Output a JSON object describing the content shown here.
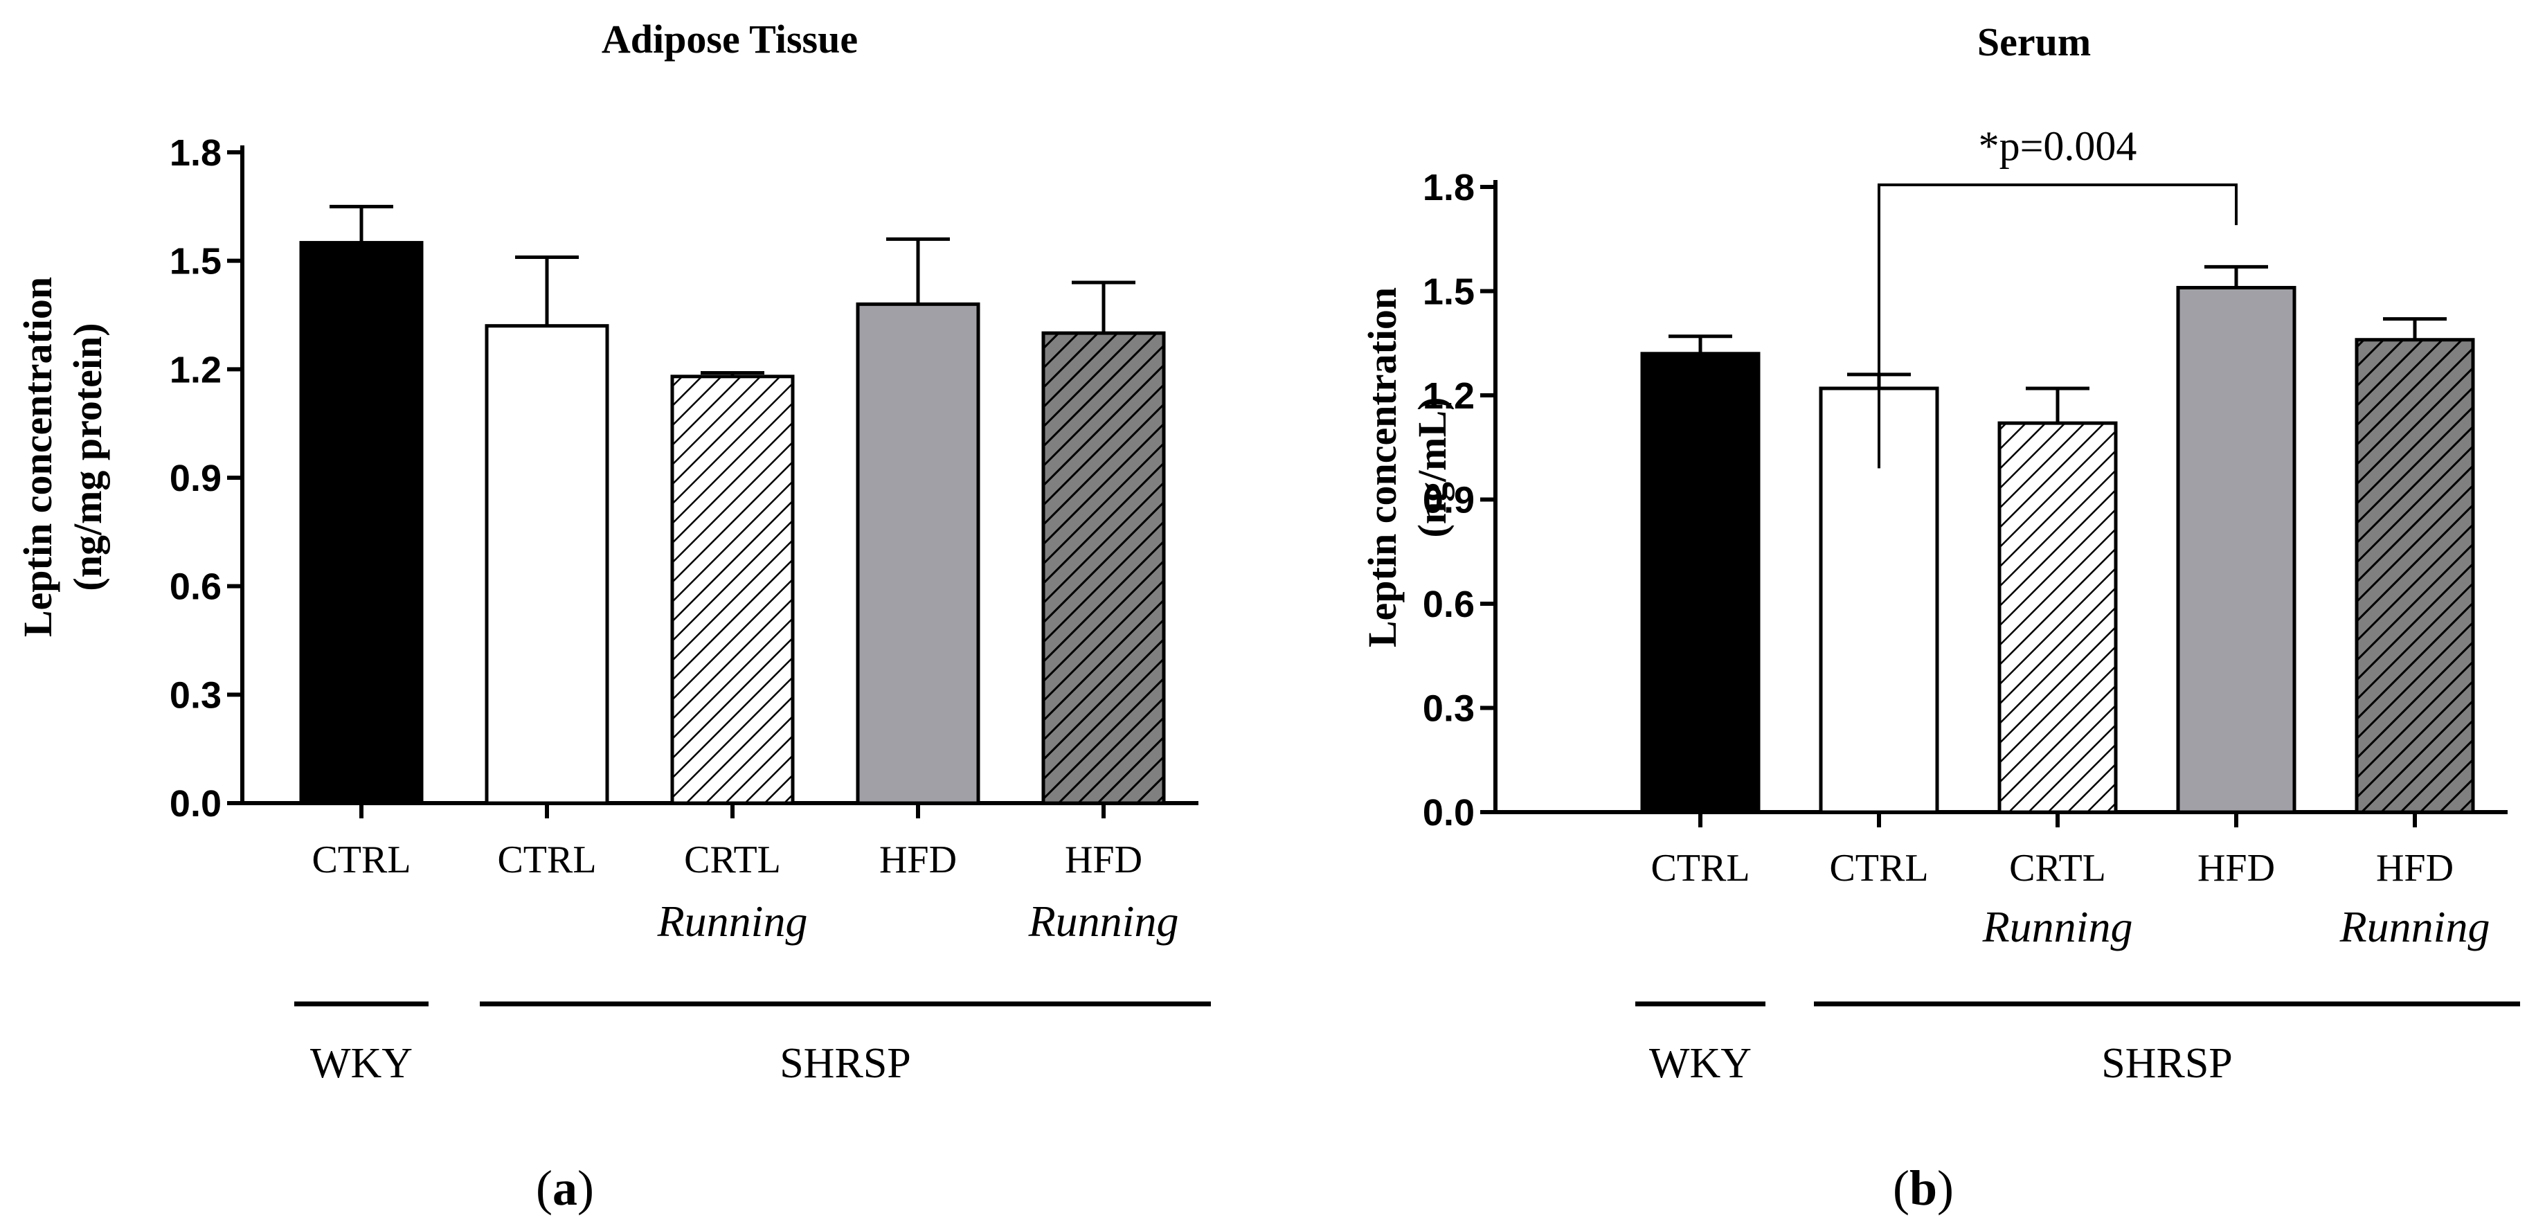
{
  "chart_data": [
    {
      "type": "bar",
      "panel": "a",
      "title": "Adipose Tissue",
      "ylabel_lines": [
        "Leptin concentration",
        "(ng/mg protein)"
      ],
      "ylim": [
        0,
        1.8
      ],
      "yticks": [
        "0.0",
        "0.3",
        "0.6",
        "0.9",
        "1.2",
        "1.5",
        "1.8"
      ],
      "categories": [
        {
          "line1": "CTRL",
          "line2": ""
        },
        {
          "line1": "CTRL",
          "line2": ""
        },
        {
          "line1": "CRTL",
          "line2": "Running"
        },
        {
          "line1": "HFD",
          "line2": ""
        },
        {
          "line1": "HFD",
          "line2": "Running"
        }
      ],
      "values": [
        1.55,
        1.32,
        1.18,
        1.38,
        1.3
      ],
      "errors": [
        0.1,
        0.19,
        0.01,
        0.18,
        0.14
      ],
      "fills": [
        "black",
        "white",
        "hatch-light",
        "gray",
        "hatch-dark"
      ],
      "groups": [
        {
          "label": "WKY",
          "from": 0,
          "to": 0
        },
        {
          "label": "SHRSP",
          "from": 1,
          "to": 4
        }
      ],
      "annotations": []
    },
    {
      "type": "bar",
      "panel": "b",
      "title": "Serum",
      "ylabel_lines": [
        "Leptin concentration",
        "(ng/mL)"
      ],
      "ylim": [
        0,
        1.8
      ],
      "yticks": [
        "0.0",
        "0.3",
        "0.6",
        "0.9",
        "1.2",
        "1.5",
        "1.8"
      ],
      "categories": [
        {
          "line1": "CTRL",
          "line2": ""
        },
        {
          "line1": "CTRL",
          "line2": ""
        },
        {
          "line1": "CRTL",
          "line2": "Running"
        },
        {
          "line1": "HFD",
          "line2": ""
        },
        {
          "line1": "HFD",
          "line2": "Running"
        }
      ],
      "values": [
        1.32,
        1.22,
        1.12,
        1.51,
        1.36
      ],
      "errors": [
        0.05,
        0.04,
        0.1,
        0.06,
        0.06
      ],
      "fills": [
        "black",
        "white",
        "hatch-light",
        "gray",
        "hatch-dark"
      ],
      "groups": [
        {
          "label": "WKY",
          "from": 0,
          "to": 0
        },
        {
          "label": "SHRSP",
          "from": 1,
          "to": 4
        }
      ],
      "annotations": [
        {
          "text": "*p=0.004",
          "from": 1,
          "to": 3
        }
      ]
    }
  ],
  "colors": {
    "black": "#000000",
    "white": "#ffffff",
    "gray": "#a0a0a6",
    "dark_gray": "#808080",
    "axis": "#000000"
  }
}
